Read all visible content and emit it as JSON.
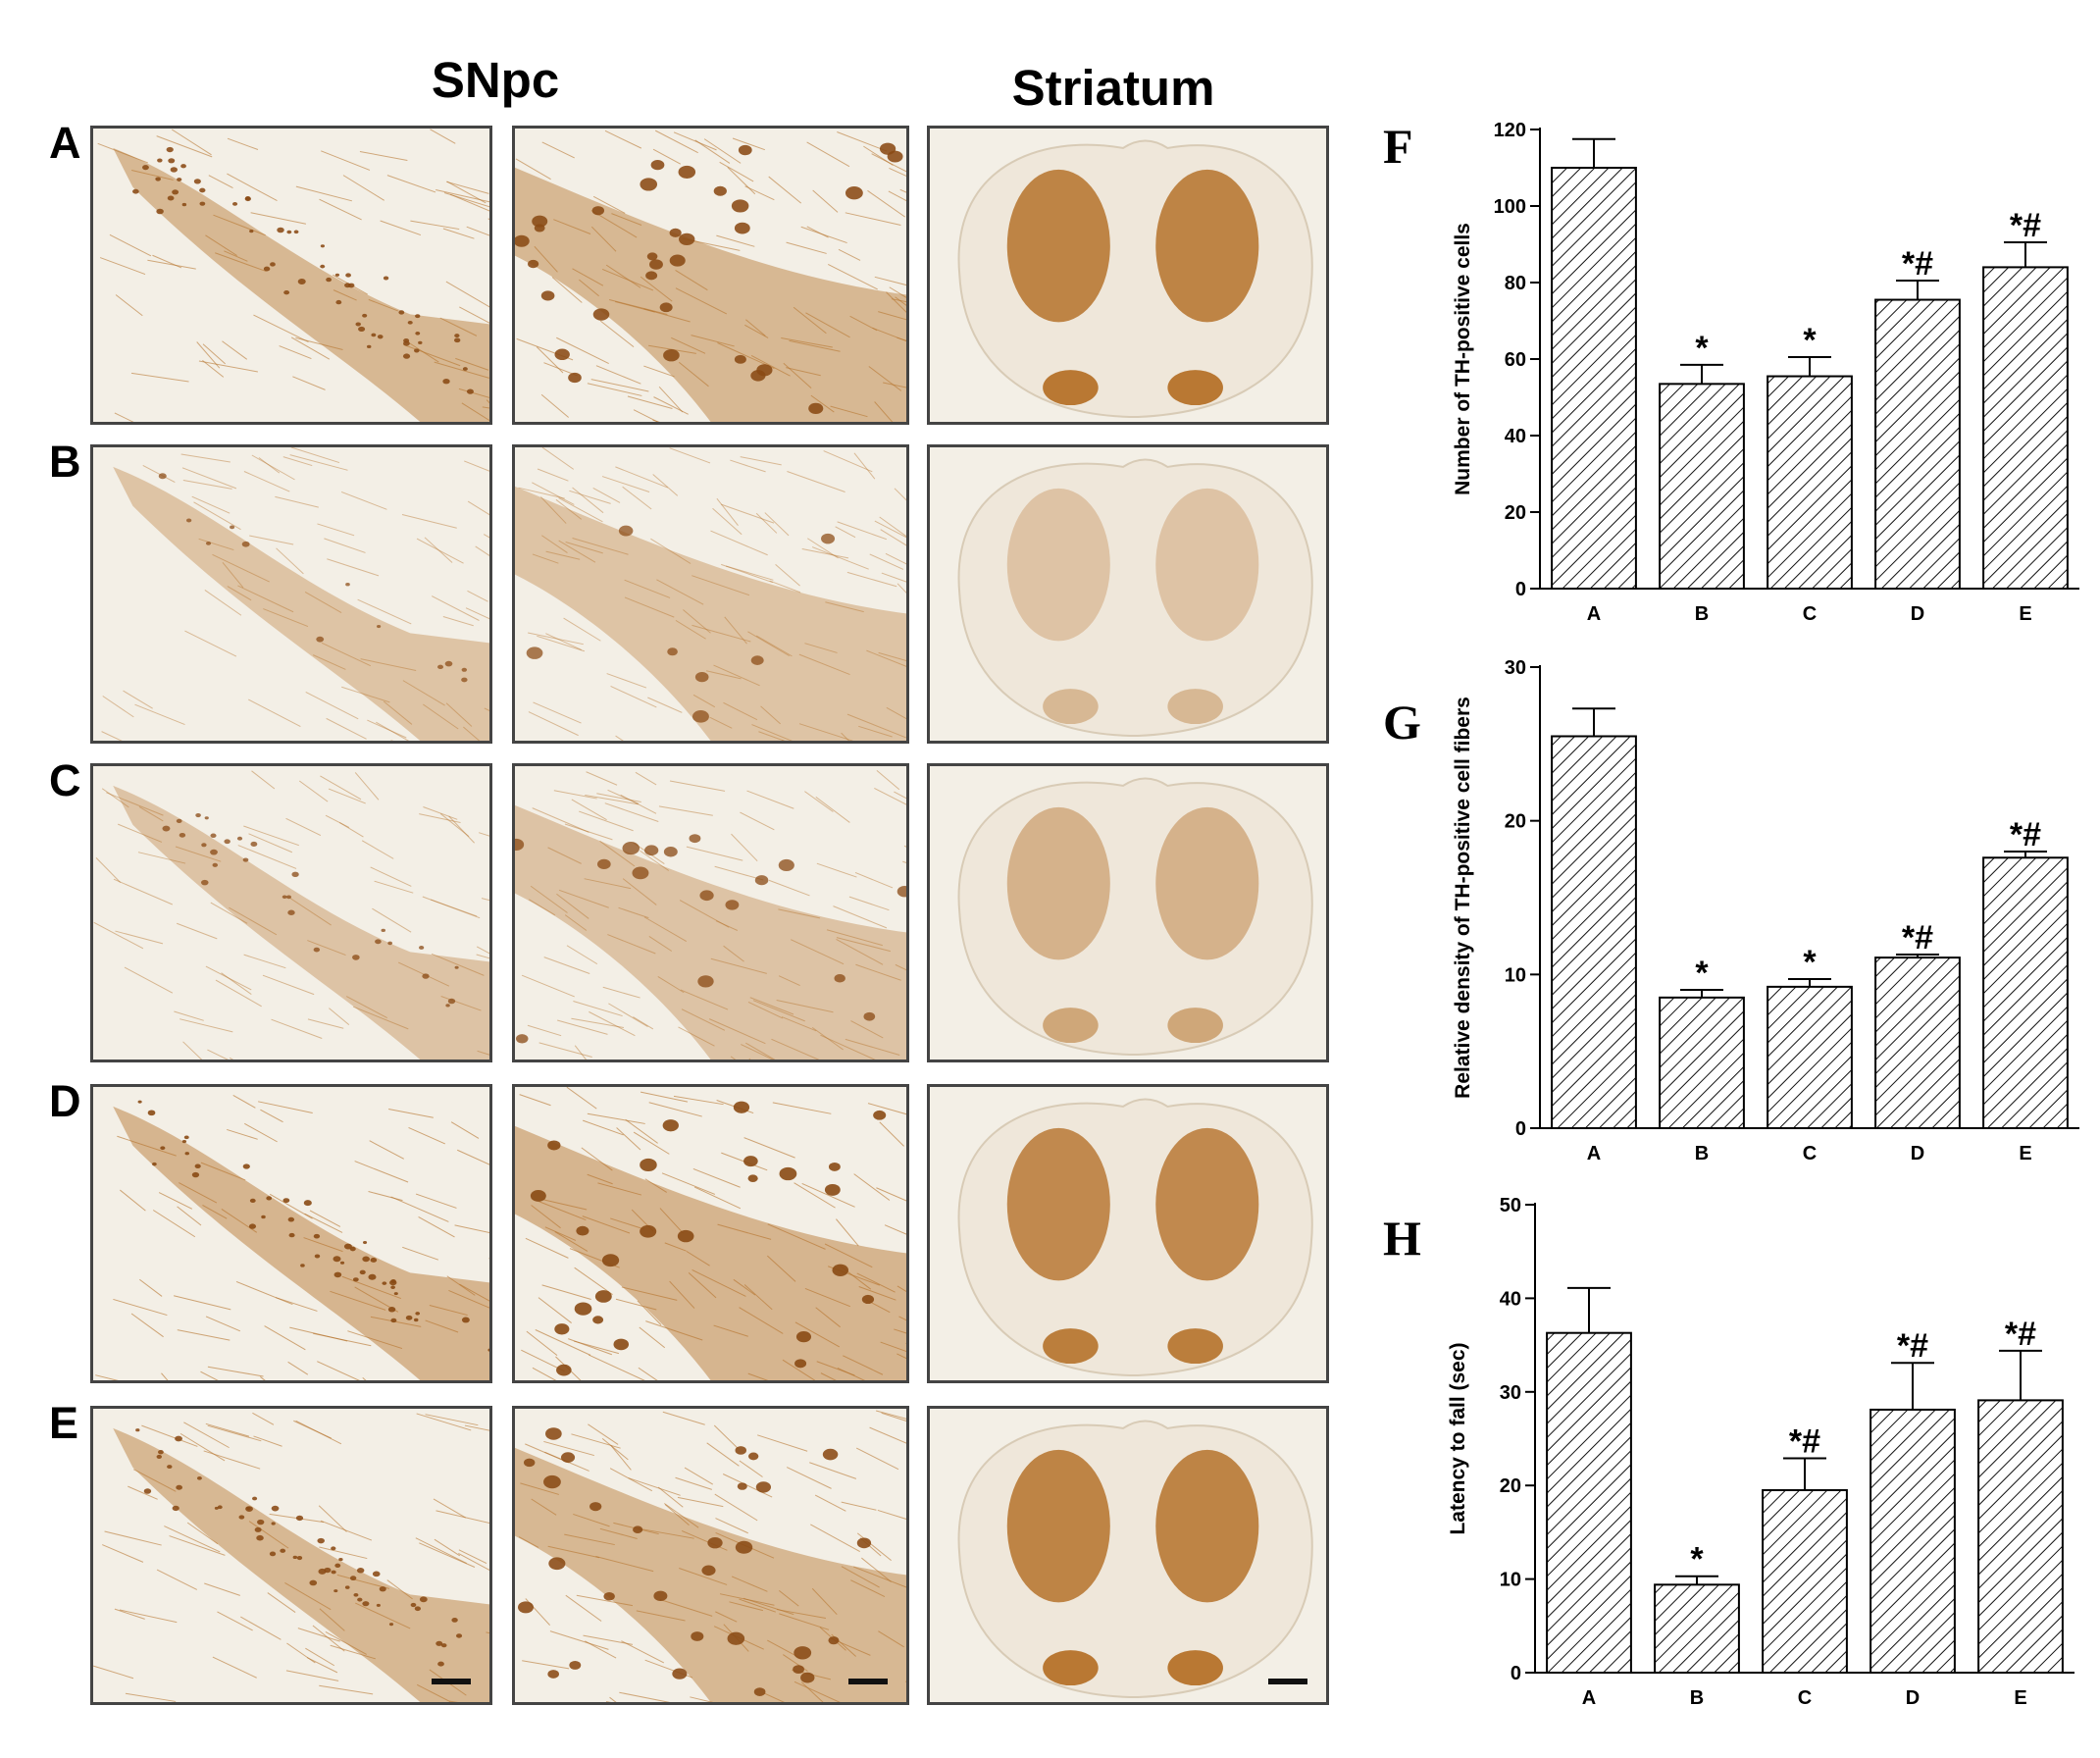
{
  "figure": {
    "column_headers": [
      "SNpc",
      "Striatum"
    ],
    "row_labels": [
      "A",
      "B",
      "C",
      "D",
      "E"
    ],
    "chart_labels": [
      "F",
      "G",
      "H"
    ]
  },
  "micrographs": [
    {
      "row": "A",
      "stain_intensity": 0.75,
      "cell_density": 0.7,
      "striatum_intensity": 0.85
    },
    {
      "row": "B",
      "stain_intensity": 0.45,
      "cell_density": 0.15,
      "striatum_intensity": 0.3
    },
    {
      "row": "C",
      "stain_intensity": 0.5,
      "cell_density": 0.35,
      "striatum_intensity": 0.45
    },
    {
      "row": "D",
      "stain_intensity": 0.8,
      "cell_density": 0.55,
      "striatum_intensity": 0.8
    },
    {
      "row": "E",
      "stain_intensity": 0.75,
      "cell_density": 0.65,
      "striatum_intensity": 0.85
    }
  ],
  "colors": {
    "stain": "#b5722a",
    "stain_dark": "#8a4a14",
    "tissue_bg": "#f3efe6"
  },
  "chart_data": [
    {
      "type": "bar",
      "label": "F",
      "categories": [
        "A",
        "B",
        "C",
        "D",
        "E"
      ],
      "values": [
        110,
        53.5,
        55.5,
        75.5,
        84
      ],
      "errors": [
        7.5,
        5,
        5,
        5,
        6.5
      ],
      "annotations": [
        "",
        "*",
        "*",
        "*#",
        "*#"
      ],
      "ylabel": "Number of TH-positive cells",
      "yticks": [
        0,
        20,
        40,
        60,
        80,
        100,
        120
      ],
      "ylim": [
        0,
        120
      ],
      "pattern": "diagonal hatch"
    },
    {
      "type": "bar",
      "label": "G",
      "categories": [
        "A",
        "B",
        "C",
        "D",
        "E"
      ],
      "values": [
        25.5,
        8.5,
        9.2,
        11.1,
        17.6
      ],
      "errors": [
        1.8,
        0.5,
        0.5,
        0.2,
        0.4
      ],
      "annotations": [
        "",
        "*",
        "*",
        "*#",
        "*#"
      ],
      "ylabel": "Relative density of TH-positive cell fibers",
      "yticks": [
        0,
        10,
        20,
        30
      ],
      "ylim": [
        0,
        30
      ],
      "pattern": "diagonal hatch"
    },
    {
      "type": "bar",
      "label": "H",
      "categories": [
        "A",
        "B",
        "C",
        "D",
        "E"
      ],
      "values": [
        36.3,
        9.4,
        19.5,
        28.1,
        29.1
      ],
      "errors": [
        4.8,
        0.9,
        3.4,
        5,
        5.3
      ],
      "annotations": [
        "",
        "*",
        "*#",
        "*#",
        "*#"
      ],
      "ylabel": "Latency to fall (sec)",
      "yticks": [
        0,
        10,
        20,
        30,
        40,
        50
      ],
      "ylim": [
        0,
        50
      ],
      "pattern": "diagonal hatch"
    }
  ]
}
